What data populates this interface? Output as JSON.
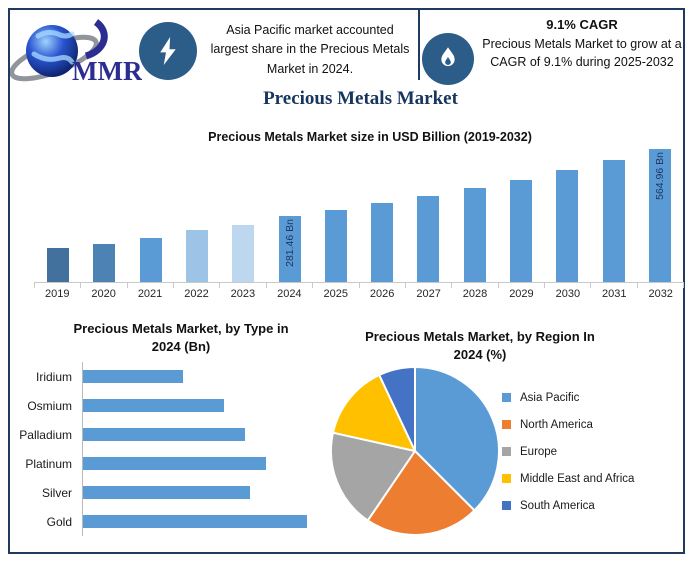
{
  "colors": {
    "frame_navy": "#1e3a5f",
    "icon_circle": "#2b5d88",
    "title_navy": "#17365d",
    "logo_text_color": "#2b2e90",
    "axis_gray": "#c9c9c9",
    "bar_label_navy": "#1f3864"
  },
  "header": {
    "logo_text": "MMR",
    "callout1_text": "Asia Pacific market accounted largest share in the Precious Metals Market in 2024.",
    "callout2_title": "9.1% CAGR",
    "callout2_text": "Precious Metals Market to grow at a CAGR of 9.1% during 2025-2032"
  },
  "main_title": "Precious Metals Market",
  "chart_data": [
    {
      "id": "market_size",
      "type": "bar",
      "orientation": "vertical",
      "title": "Precious Metals Market size in USD Billion (2019-2032)",
      "xlabel": "",
      "ylabel": "USD Billion",
      "ylim": [
        0,
        565
      ],
      "grid": false,
      "categories": [
        "2019",
        "2020",
        "2021",
        "2022",
        "2023",
        "2024",
        "2025",
        "2026",
        "2027",
        "2028",
        "2029",
        "2030",
        "2031",
        "2032"
      ],
      "values": [
        145,
        161,
        186,
        219,
        244,
        281.46,
        307.07,
        335.01,
        365.5,
        398.76,
        435.05,
        474.64,
        517.83,
        564.96
      ],
      "data_labels": [
        null,
        null,
        null,
        null,
        null,
        "281.46 Bn",
        null,
        null,
        null,
        null,
        null,
        null,
        null,
        "564.96 Bn"
      ],
      "bar_colors": [
        "#41719C",
        "#4D82B4",
        "#5B9BD5",
        "#9DC3E6",
        "#BDD7EE",
        "#5B9BD5",
        "#5B9BD5",
        "#5B9BD5",
        "#5B9BD5",
        "#5B9BD5",
        "#5B9BD5",
        "#5B9BD5",
        "#5B9BD5",
        "#5B9BD5"
      ]
    },
    {
      "id": "by_type",
      "type": "bar",
      "orientation": "horizontal",
      "title": "Precious Metals Market, by Type in 2024 (Bn)",
      "title_lines": [
        "Precious Metals Market, by Type in",
        "2024 (Bn)"
      ],
      "xlim": [
        0,
        70
      ],
      "grid": false,
      "categories": [
        "Iridium",
        "Osmium",
        "Palladium",
        "Platinum",
        "Silver",
        "Gold"
      ],
      "values": [
        29,
        41,
        47,
        53,
        48.5,
        65
      ],
      "bar_color": "#5B9BD5"
    },
    {
      "id": "by_region",
      "type": "pie",
      "title": "Precious Metals Market, by Region In 2024 (%)",
      "title_lines": [
        "Precious Metals Market, by Region In",
        "2024 (%)"
      ],
      "legend_position": "right",
      "labels": [
        "Asia Pacific",
        "North America",
        "Europe",
        "Middle East and Africa",
        "South America"
      ],
      "values": [
        37.5,
        22,
        19,
        14.5,
        7
      ],
      "colors": [
        "#5B9BD5",
        "#ED7D31",
        "#A5A5A5",
        "#FFC000",
        "#4472C4"
      ]
    }
  ]
}
